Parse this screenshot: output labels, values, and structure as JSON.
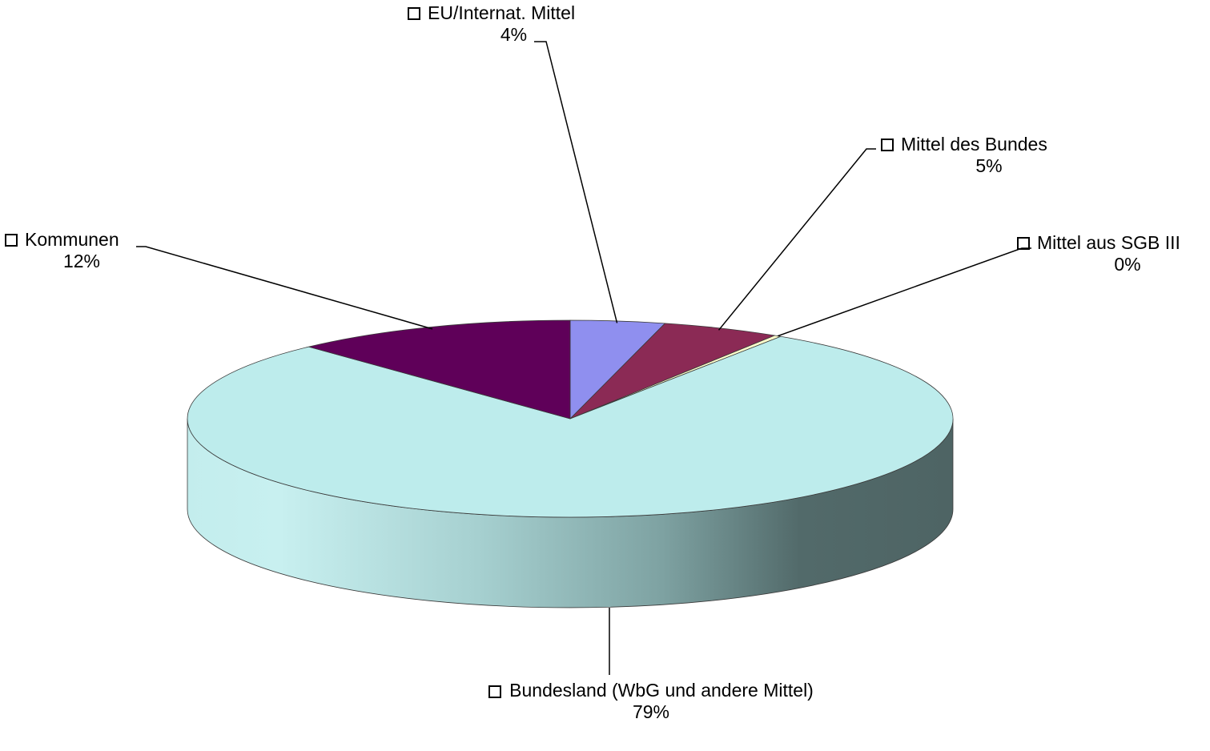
{
  "chart_data": {
    "type": "pie",
    "style": "3d-pie",
    "title": "",
    "legend": "none",
    "slices": [
      {
        "label": "EU/Internat. Mittel",
        "value": 4,
        "value_label": "4%",
        "color": "#8f8fef"
      },
      {
        "label": "Mittel des Bundes",
        "value": 5,
        "value_label": "5%",
        "color": "#8b2a55"
      },
      {
        "label": "Mittel aus SGB III",
        "value": 0.3,
        "value_label": "0%",
        "color": "#ffffcc"
      },
      {
        "label": "Bundesland (WbG und andere Mittel)",
        "value": 79,
        "value_label": "79%",
        "color": "#bdecec"
      },
      {
        "label": "Kommunen",
        "value": 12,
        "value_label": "12%",
        "color": "#5f0059"
      }
    ]
  }
}
